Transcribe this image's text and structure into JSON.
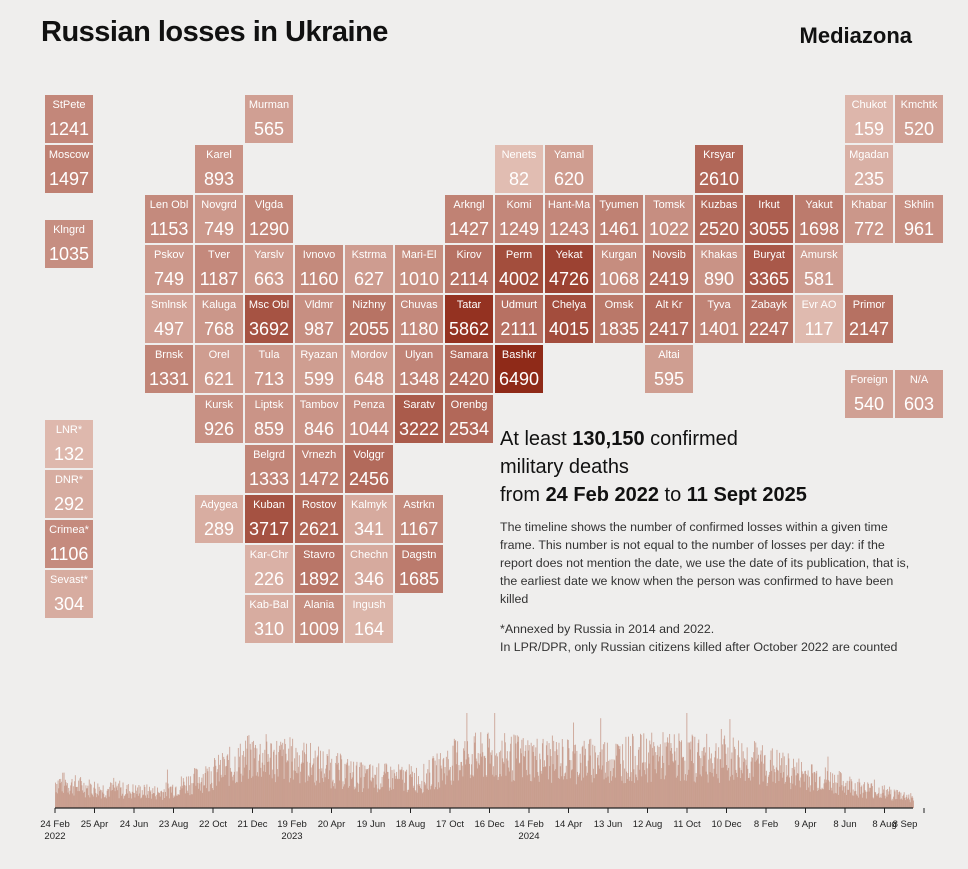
{
  "title": "Russian losses in Ukraine",
  "brand": "Mediazona",
  "headline": {
    "p1": "At least ",
    "total": "130,150",
    "p2": " confirmed",
    "line2": "military deaths",
    "p3": "from ",
    "start": "24 Feb 2022",
    "p4": " to ",
    "end": "11 Sept 2025"
  },
  "description": "The timeline shows the number of confirmed losses within a given time frame. This number is not equal to the number of losses per day: if the report does not mention the date, we use the date of its publication, that is, the earliest date we know when the person was confirmed to have been killed",
  "note_line1": "*Annexed by Russia in 2014 and 2022.",
  "note_line2": "In LPR/DPR, only Russian citizens killed after October 2022 are counted",
  "colors": {
    "light": "#ebd0c6",
    "dark": "#8f2a18",
    "bar": "#c08c7a",
    "background": "#efeeed"
  },
  "chart_data": {
    "type": "heatmap",
    "title": "Russian losses in Ukraine",
    "regions": [
      {
        "label": "StPete",
        "value": 1241,
        "col": 0,
        "row": 0
      },
      {
        "label": "Murman",
        "value": 565,
        "col": 4,
        "row": 0
      },
      {
        "label": "Chukot",
        "value": 159,
        "col": 16,
        "row": 0
      },
      {
        "label": "Kmchtk",
        "value": 520,
        "col": 17,
        "row": 0
      },
      {
        "label": "Moscow",
        "value": 1497,
        "col": 0,
        "row": 1
      },
      {
        "label": "Karel",
        "value": 893,
        "col": 3,
        "row": 1
      },
      {
        "label": "Nenets",
        "value": 82,
        "col": 9,
        "row": 1
      },
      {
        "label": "Yamal",
        "value": 620,
        "col": 10,
        "row": 1
      },
      {
        "label": "Krsyar",
        "value": 2610,
        "col": 13,
        "row": 1
      },
      {
        "label": "Mgadan",
        "value": 235,
        "col": 16,
        "row": 1
      },
      {
        "label": "Len Obl",
        "value": 1153,
        "col": 2,
        "row": 2
      },
      {
        "label": "Novgrd",
        "value": 749,
        "col": 3,
        "row": 2
      },
      {
        "label": "Vlgda",
        "value": 1290,
        "col": 4,
        "row": 2
      },
      {
        "label": "Arkngl",
        "value": 1427,
        "col": 8,
        "row": 2
      },
      {
        "label": "Komi",
        "value": 1249,
        "col": 9,
        "row": 2
      },
      {
        "label": "Hant-Ma",
        "value": 1243,
        "col": 10,
        "row": 2
      },
      {
        "label": "Tyumen",
        "value": 1461,
        "col": 11,
        "row": 2
      },
      {
        "label": "Tomsk",
        "value": 1022,
        "col": 12,
        "row": 2
      },
      {
        "label": "Kuzbas",
        "value": 2520,
        "col": 13,
        "row": 2
      },
      {
        "label": "Irkut",
        "value": 3055,
        "col": 14,
        "row": 2
      },
      {
        "label": "Yakut",
        "value": 1698,
        "col": 15,
        "row": 2
      },
      {
        "label": "Khabar",
        "value": 772,
        "col": 16,
        "row": 2
      },
      {
        "label": "Skhlin",
        "value": 961,
        "col": 17,
        "row": 2
      },
      {
        "label": "Klngrd",
        "value": 1035,
        "col": 0,
        "row": 2.5
      },
      {
        "label": "Pskov",
        "value": 749,
        "col": 2,
        "row": 3
      },
      {
        "label": "Tver",
        "value": 1187,
        "col": 3,
        "row": 3
      },
      {
        "label": "Yarslv",
        "value": 663,
        "col": 4,
        "row": 3
      },
      {
        "label": "Ivnovo",
        "value": 1160,
        "col": 5,
        "row": 3
      },
      {
        "label": "Kstrma",
        "value": 627,
        "col": 6,
        "row": 3
      },
      {
        "label": "Mari-El",
        "value": 1010,
        "col": 7,
        "row": 3
      },
      {
        "label": "Kirov",
        "value": 2114,
        "col": 8,
        "row": 3
      },
      {
        "label": "Perm",
        "value": 4002,
        "col": 9,
        "row": 3
      },
      {
        "label": "Yekat",
        "value": 4726,
        "col": 10,
        "row": 3
      },
      {
        "label": "Kurgan",
        "value": 1068,
        "col": 11,
        "row": 3
      },
      {
        "label": "Novsib",
        "value": 2419,
        "col": 12,
        "row": 3
      },
      {
        "label": "Khakas",
        "value": 890,
        "col": 13,
        "row": 3
      },
      {
        "label": "Buryat",
        "value": 3365,
        "col": 14,
        "row": 3
      },
      {
        "label": "Amursk",
        "value": 581,
        "col": 15,
        "row": 3
      },
      {
        "label": "Smlnsk",
        "value": 497,
        "col": 2,
        "row": 4
      },
      {
        "label": "Kaluga",
        "value": 768,
        "col": 3,
        "row": 4
      },
      {
        "label": "Msc Obl",
        "value": 3692,
        "col": 4,
        "row": 4
      },
      {
        "label": "Vldmr",
        "value": 987,
        "col": 5,
        "row": 4
      },
      {
        "label": "Nizhny",
        "value": 2055,
        "col": 6,
        "row": 4
      },
      {
        "label": "Chuvas",
        "value": 1180,
        "col": 7,
        "row": 4
      },
      {
        "label": "Tatar",
        "value": 5862,
        "col": 8,
        "row": 4
      },
      {
        "label": "Udmurt",
        "value": 2111,
        "col": 9,
        "row": 4
      },
      {
        "label": "Chelya",
        "value": 4015,
        "col": 10,
        "row": 4
      },
      {
        "label": "Omsk",
        "value": 1835,
        "col": 11,
        "row": 4
      },
      {
        "label": "Alt Kr",
        "value": 2417,
        "col": 12,
        "row": 4
      },
      {
        "label": "Tyva",
        "value": 1401,
        "col": 13,
        "row": 4
      },
      {
        "label": "Zabayk",
        "value": 2247,
        "col": 14,
        "row": 4
      },
      {
        "label": "Evr AO",
        "value": 117,
        "col": 15,
        "row": 4
      },
      {
        "label": "Primor",
        "value": 2147,
        "col": 16,
        "row": 4
      },
      {
        "label": "Brnsk",
        "value": 1331,
        "col": 2,
        "row": 5
      },
      {
        "label": "Orel",
        "value": 621,
        "col": 3,
        "row": 5
      },
      {
        "label": "Tula",
        "value": 713,
        "col": 4,
        "row": 5
      },
      {
        "label": "Ryazan",
        "value": 599,
        "col": 5,
        "row": 5
      },
      {
        "label": "Mordov",
        "value": 648,
        "col": 6,
        "row": 5
      },
      {
        "label": "Ulyan",
        "value": 1348,
        "col": 7,
        "row": 5
      },
      {
        "label": "Samara",
        "value": 2420,
        "col": 8,
        "row": 5
      },
      {
        "label": "Bashkr",
        "value": 6490,
        "col": 9,
        "row": 5
      },
      {
        "label": "Altai",
        "value": 595,
        "col": 12,
        "row": 5
      },
      {
        "label": "Foreign",
        "value": 540,
        "col": 16,
        "row": 5.5
      },
      {
        "label": "N/A",
        "value": 603,
        "col": 17,
        "row": 5.5
      },
      {
        "label": "Kursk",
        "value": 926,
        "col": 3,
        "row": 6
      },
      {
        "label": "Liptsk",
        "value": 859,
        "col": 4,
        "row": 6
      },
      {
        "label": "Tambov",
        "value": 846,
        "col": 5,
        "row": 6
      },
      {
        "label": "Penza",
        "value": 1044,
        "col": 6,
        "row": 6
      },
      {
        "label": "Saratv",
        "value": 3222,
        "col": 7,
        "row": 6
      },
      {
        "label": "Orenbg",
        "value": 2534,
        "col": 8,
        "row": 6
      },
      {
        "label": "LNR*",
        "value": 132,
        "col": 0,
        "row": 6.5
      },
      {
        "label": "Belgrd",
        "value": 1333,
        "col": 4,
        "row": 7
      },
      {
        "label": "Vrnezh",
        "value": 1472,
        "col": 5,
        "row": 7
      },
      {
        "label": "Volggr",
        "value": 2456,
        "col": 6,
        "row": 7
      },
      {
        "label": "DNR*",
        "value": 292,
        "col": 0,
        "row": 7.5
      },
      {
        "label": "Adygea",
        "value": 289,
        "col": 3,
        "row": 8
      },
      {
        "label": "Kuban",
        "value": 3717,
        "col": 4,
        "row": 8
      },
      {
        "label": "Rostov",
        "value": 2621,
        "col": 5,
        "row": 8
      },
      {
        "label": "Kalmyk",
        "value": 341,
        "col": 6,
        "row": 8
      },
      {
        "label": "Astrkn",
        "value": 1167,
        "col": 7,
        "row": 8
      },
      {
        "label": "Crimea*",
        "value": 1106,
        "col": 0,
        "row": 8.5
      },
      {
        "label": "Kar-Chr",
        "value": 226,
        "col": 4,
        "row": 9
      },
      {
        "label": "Stavro",
        "value": 1892,
        "col": 5,
        "row": 9
      },
      {
        "label": "Chechn",
        "value": 346,
        "col": 6,
        "row": 9
      },
      {
        "label": "Dagstn",
        "value": 1685,
        "col": 7,
        "row": 9
      },
      {
        "label": "Sevast*",
        "value": 304,
        "col": 0,
        "row": 9.5
      },
      {
        "label": "Kab-Bal",
        "value": 310,
        "col": 4,
        "row": 10
      },
      {
        "label": "Alania",
        "value": 1009,
        "col": 5,
        "row": 10
      },
      {
        "label": "Ingush",
        "value": 164,
        "col": 6,
        "row": 10
      }
    ],
    "timeline": {
      "type": "bar",
      "x_start": "24 Feb 2022",
      "x_end": "11 Sept 2025",
      "x_ticks": [
        "24 Feb",
        "25 Apr",
        "24 Jun",
        "23 Aug",
        "22 Oct",
        "21 Dec",
        "19 Feb",
        "20 Apr",
        "19 Jun",
        "18 Aug",
        "17 Oct",
        "16 Dec",
        "14 Feb",
        "14 Apr",
        "13 Jun",
        "12 Aug",
        "11 Oct",
        "10 Dec",
        "8 Feb",
        "9 Apr",
        "8 Jun",
        "8 Aug",
        "8 Sep"
      ],
      "year_labels": [
        {
          "tick": 0,
          "text": "2022"
        },
        {
          "tick": 6,
          "text": "2023"
        },
        {
          "tick": 12,
          "text": "2024"
        }
      ],
      "level_profile": [
        {
          "date": "2022-02-24",
          "level": 30
        },
        {
          "date": "2022-05-01",
          "level": 22
        },
        {
          "date": "2022-08-01",
          "level": 18
        },
        {
          "date": "2022-10-15",
          "level": 38
        },
        {
          "date": "2022-12-20",
          "level": 60
        },
        {
          "date": "2023-03-01",
          "level": 55
        },
        {
          "date": "2023-06-01",
          "level": 36
        },
        {
          "date": "2023-09-01",
          "level": 34
        },
        {
          "date": "2023-11-01",
          "level": 60
        },
        {
          "date": "2024-02-01",
          "level": 58
        },
        {
          "date": "2024-05-01",
          "level": 55
        },
        {
          "date": "2024-09-01",
          "level": 60
        },
        {
          "date": "2025-01-01",
          "level": 56
        },
        {
          "date": "2025-04-01",
          "level": 38
        },
        {
          "date": "2025-07-01",
          "level": 22
        },
        {
          "date": "2025-09-11",
          "level": 12
        }
      ],
      "peak": 100
    }
  }
}
